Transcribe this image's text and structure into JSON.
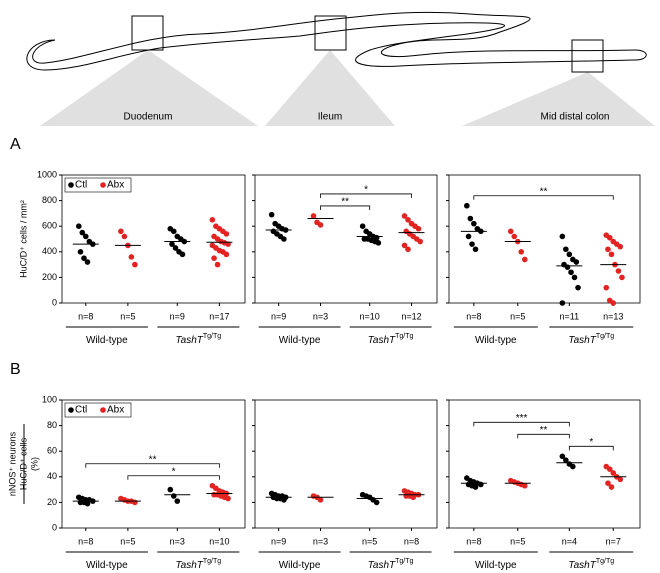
{
  "diagram": {
    "labels": [
      "Duodenum",
      "Ileum",
      "Mid distal colon"
    ]
  },
  "chart_data": [
    {
      "type": "dot",
      "panel": "A",
      "ylabel": [
        "HuC/D⁺ cells / mm²"
      ],
      "ylim": [
        0,
        1000
      ],
      "yticks": [
        0,
        200,
        400,
        600,
        800,
        1000
      ],
      "series": [
        {
          "name": "Ctl",
          "color": "#000000"
        },
        {
          "name": "Abx",
          "color": "#e32222"
        }
      ],
      "legend": "upper left",
      "genotypes": [
        "Wild-type",
        "TashT"
      ],
      "genotype_sup": "Tg/Tg",
      "subplots": [
        {
          "categories": [
            "n=8",
            "n=5",
            "n=9",
            "n=17"
          ],
          "values": [
            [
              600,
              550,
              520,
              480,
              460,
              400,
              350,
              320
            ],
            [
              560,
              520,
              450,
              360,
              300
            ],
            [
              580,
              560,
              520,
              500,
              480,
              460,
              430,
              400,
              380
            ],
            [
              650,
              600,
              580,
              560,
              540,
              520,
              500,
              480,
              470,
              460,
              450,
              430,
              410,
              400,
              380,
              350,
              300
            ]
          ],
          "means": [
            460,
            450,
            480,
            475
          ],
          "brackets": []
        },
        {
          "categories": [
            "n=9",
            "n=3",
            "n=10",
            "n=12"
          ],
          "values": [
            [
              690,
              620,
              600,
              580,
              570,
              560,
              540,
              520,
              500
            ],
            [
              680,
              630,
              610
            ],
            [
              600,
              560,
              540,
              520,
              510,
              500,
              500,
              490,
              480,
              470
            ],
            [
              680,
              650,
              620,
              600,
              580,
              560,
              540,
              520,
              500,
              480,
              450,
              420
            ]
          ],
          "means": [
            570,
            660,
            520,
            550
          ],
          "brackets": [
            {
              "from": 1,
              "to": 2,
              "label": "**"
            },
            {
              "from": 1,
              "to": 3,
              "label": "*"
            }
          ]
        },
        {
          "categories": [
            "n=8",
            "n=5",
            "n=11",
            "n=13"
          ],
          "values": [
            [
              760,
              660,
              620,
              580,
              560,
              520,
              460,
              420
            ],
            [
              560,
              520,
              480,
              400,
              340
            ],
            [
              520,
              420,
              380,
              340,
              320,
              300,
              280,
              240,
              200,
              120,
              0
            ],
            [
              530,
              510,
              480,
              460,
              440,
              420,
              380,
              300,
              250,
              200,
              120,
              20,
              0
            ]
          ],
          "means": [
            560,
            480,
            290,
            300
          ],
          "brackets": [
            {
              "from": 0,
              "to": 3,
              "label": "**"
            }
          ]
        }
      ]
    },
    {
      "type": "dot",
      "panel": "B",
      "ylabel": [
        "nNOS⁺ neurons",
        "HuC/D⁺ cells",
        "(%)"
      ],
      "ylim": [
        0,
        100
      ],
      "yticks": [
        0,
        20,
        40,
        60,
        80,
        100
      ],
      "series": [
        {
          "name": "Ctl",
          "color": "#000000"
        },
        {
          "name": "Abx",
          "color": "#e32222"
        }
      ],
      "legend": "upper left",
      "genotypes": [
        "Wild-type",
        "TashT"
      ],
      "genotype_sup": "Tg/Tg",
      "subplots": [
        {
          "categories": [
            "n=8",
            "n=5",
            "n=3",
            "n=10"
          ],
          "values": [
            [
              24,
              23,
              22,
              22,
              21,
              20,
              20,
              19
            ],
            [
              23,
              22,
              21,
              21,
              20
            ],
            [
              30,
              25,
              21
            ],
            [
              33,
              31,
              29,
              28,
              27,
              26,
              26,
              25,
              24,
              23
            ]
          ],
          "means": [
            21,
            21,
            26,
            27
          ],
          "brackets": [
            {
              "from": 1,
              "to": 3,
              "label": "*"
            },
            {
              "from": 0,
              "to": 3,
              "label": "**"
            }
          ]
        },
        {
          "categories": [
            "n=9",
            "n=3",
            "n=5",
            "n=8"
          ],
          "values": [
            [
              27,
              26,
              25,
              25,
              24,
              24,
              23,
              23,
              22
            ],
            [
              25,
              24,
              22
            ],
            [
              26,
              25,
              24,
              22,
              20
            ],
            [
              29,
              28,
              27,
              26,
              26,
              25,
              25,
              24
            ]
          ],
          "means": [
            24,
            24,
            23,
            26
          ],
          "brackets": []
        },
        {
          "categories": [
            "n=8",
            "n=5",
            "n=4",
            "n=7"
          ],
          "values": [
            [
              39,
              37,
              36,
              35,
              34,
              34,
              33,
              32
            ],
            [
              37,
              36,
              35,
              34,
              33
            ],
            [
              56,
              53,
              50,
              48
            ],
            [
              48,
              46,
              43,
              40,
              38,
              35,
              32
            ]
          ],
          "means": [
            35,
            35,
            51,
            40
          ],
          "brackets": [
            {
              "from": 2,
              "to": 3,
              "label": "*"
            },
            {
              "from": 1,
              "to": 2,
              "label": "**"
            },
            {
              "from": 0,
              "to": 2,
              "label": "***"
            }
          ]
        }
      ]
    }
  ]
}
